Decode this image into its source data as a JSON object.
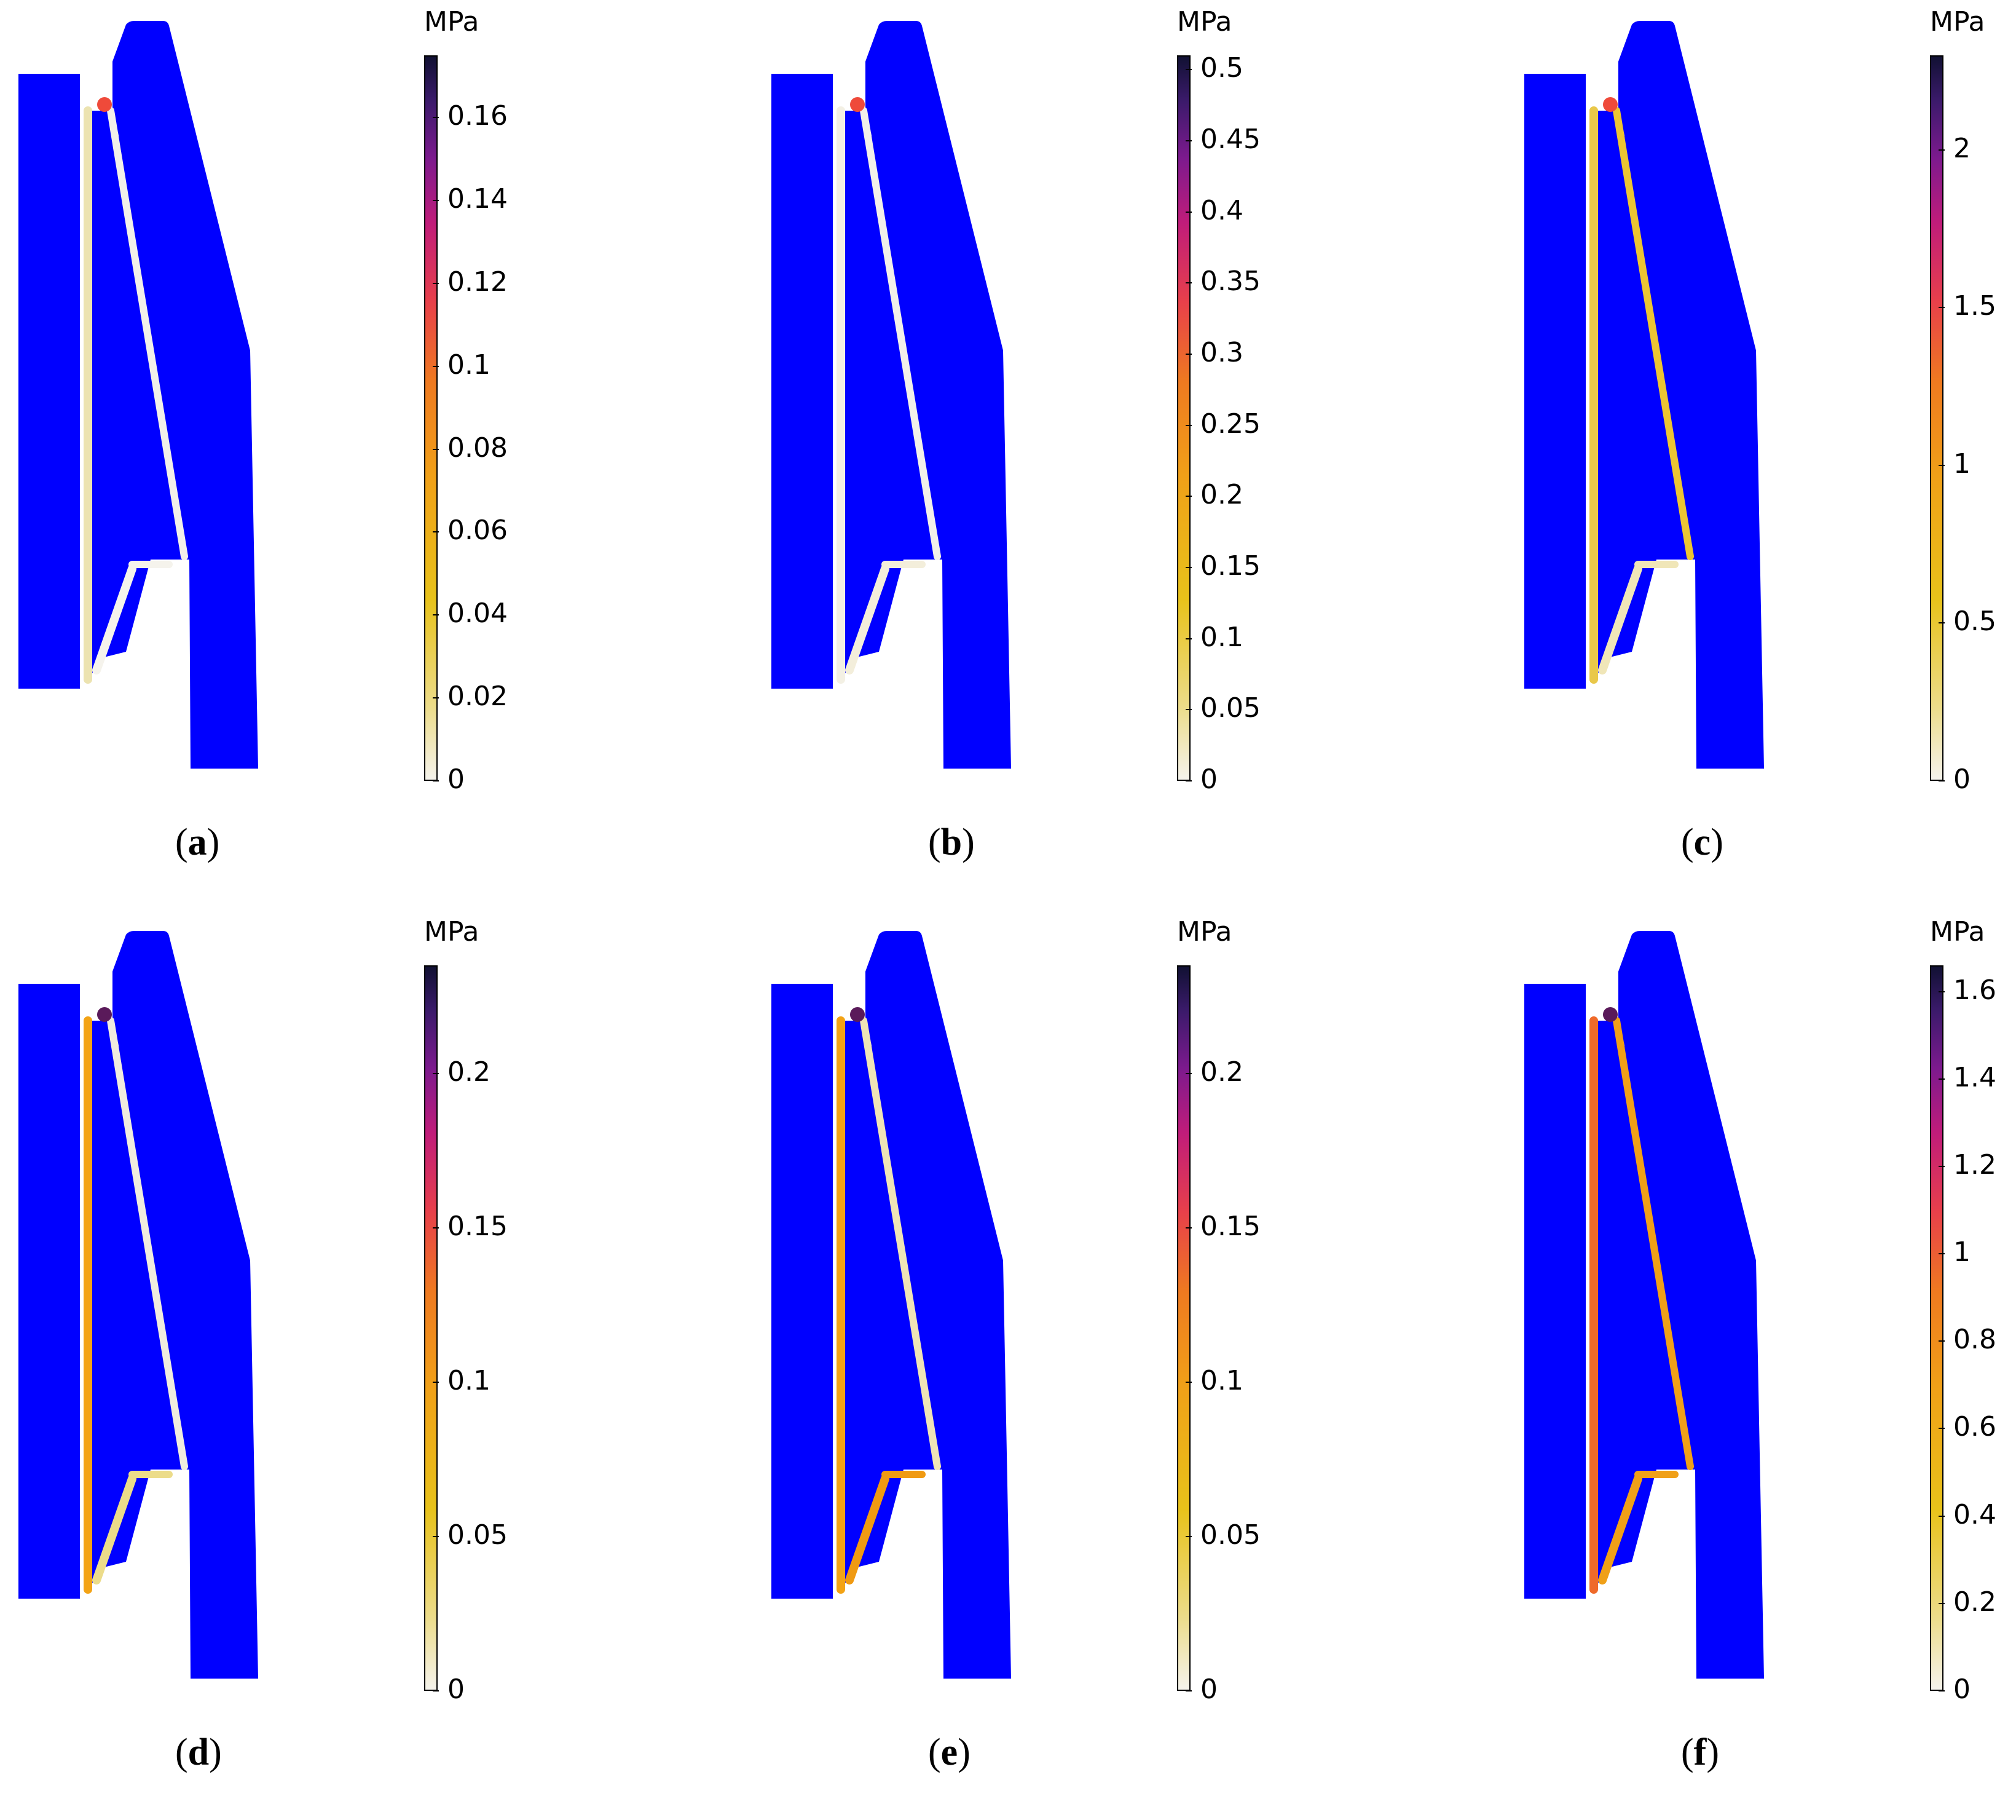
{
  "colors": {
    "geometry": "#0000ff",
    "colorbar_stops": [
      "#f5f3ec",
      "#ecdc8a",
      "#e8c21a",
      "#f0a018",
      "#ef7a20",
      "#e8404a",
      "#c01c7a",
      "#7c1a8e",
      "#3a1a6a",
      "#111133"
    ]
  },
  "panels": [
    {
      "id": "a",
      "unit": "MPa",
      "ticks": [
        "0",
        "0.02",
        "0.04",
        "0.06",
        "0.08",
        "0.1",
        "0.12",
        "0.14",
        "0.16"
      ],
      "caption_letter": "a",
      "max_value": 0.175,
      "strip_colors": {
        "left": "#ece3b0",
        "right": "#f2f0ea",
        "bottom": "#f5f3ec",
        "corner": "#ef4a3a"
      }
    },
    {
      "id": "b",
      "unit": "MPa",
      "ticks": [
        "0",
        "0.05",
        "0.1",
        "0.15",
        "0.2",
        "0.25",
        "0.3",
        "0.35",
        "0.4",
        "0.45",
        "0.5"
      ],
      "caption_letter": "b",
      "max_value": 0.51,
      "strip_colors": {
        "left": "#f3f0e4",
        "right": "#f2f0ea",
        "bottom": "#f3eedb",
        "corner": "#ef4a3a"
      }
    },
    {
      "id": "c",
      "unit": "MPa",
      "ticks": [
        "0",
        "0.5",
        "1",
        "1.5",
        "2"
      ],
      "caption_letter": "c",
      "max_value": 2.3,
      "strip_colors": {
        "left": "#e9c84a",
        "right": "#ecc533",
        "bottom": "#f0e6b8",
        "corner": "#ef4a3a"
      }
    },
    {
      "id": "d",
      "unit": "MPa",
      "ticks": [
        "0",
        "0.05",
        "0.1",
        "0.15",
        "0.2"
      ],
      "caption_letter": "d",
      "max_value": 0.235,
      "strip_colors": {
        "left": "#f3a315",
        "right": "#f0ecdf",
        "bottom": "#ecdc8a",
        "corner": "#5a1a5a"
      }
    },
    {
      "id": "e",
      "unit": "MPa",
      "ticks": [
        "0",
        "0.05",
        "0.1",
        "0.15",
        "0.2"
      ],
      "caption_letter": "e",
      "max_value": 0.235,
      "strip_colors": {
        "left": "#f3a315",
        "right": "#efe4b7",
        "bottom": "#f09a12",
        "corner": "#5a1a5a"
      }
    },
    {
      "id": "f",
      "unit": "MPa",
      "ticks": [
        "0",
        "0.2",
        "0.4",
        "0.6",
        "0.8",
        "1",
        "1.2",
        "1.4",
        "1.6"
      ],
      "caption_letter": "f",
      "max_value": 1.66,
      "strip_colors": {
        "left": "#ef6a2a",
        "right": "#f0a018",
        "bottom": "#f0a018",
        "corner": "#5a1a5a"
      }
    }
  ]
}
